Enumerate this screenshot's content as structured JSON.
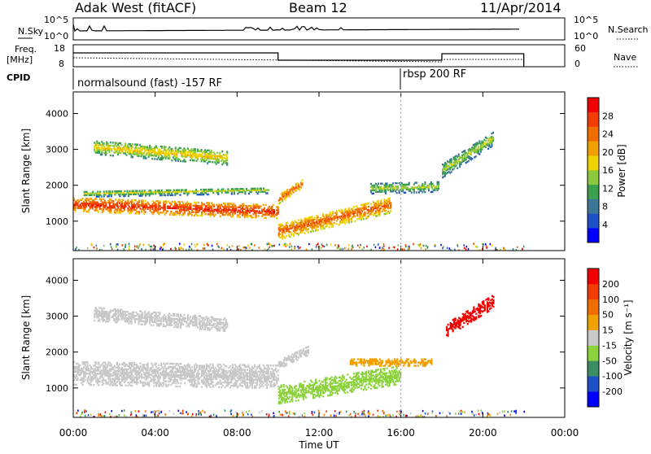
{
  "header": {
    "station": "Adak West (fitACF)",
    "beam": "Beam 12",
    "date": "11/Apr/2014"
  },
  "panels": {
    "nsky_label": "N.Sky",
    "nsky_ticks": [
      "10^5",
      "10^0"
    ],
    "nsearch_label": "N.Search",
    "nsearch_ticks": [
      "10^5",
      "10^0"
    ],
    "freq_label": "Freq.",
    "freq_unit": "[MHz]",
    "freq_ticks": [
      "18",
      "8"
    ],
    "nave_label": "Nave",
    "nave_ticks": [
      "60",
      "0"
    ],
    "cpid_label": "CPID",
    "cpid_segments": [
      "normalsound (fast) -157 RF",
      "rbsp 200 RF"
    ]
  },
  "colorbars": {
    "power": {
      "title": "Power [dB]",
      "labels": [
        "28",
        "24",
        "20",
        "16",
        "12",
        "8",
        "4"
      ],
      "colors": [
        "#0000ff",
        "#1e50c8",
        "#3c7896",
        "#3ca050",
        "#8cc83c",
        "#f0d200",
        "#f0a000",
        "#f06e00",
        "#f03c00",
        "#f00000"
      ]
    },
    "velocity": {
      "title": "Velocity [m s⁻¹]",
      "labels": [
        "200",
        "100",
        "50",
        "15",
        "-15",
        "-50",
        "-100",
        "-200"
      ],
      "colors": [
        "#0000ff",
        "#1e50c8",
        "#3c8c64",
        "#8cd23c",
        "#c8c8c8",
        "#f0a000",
        "#f06e00",
        "#f03c00",
        "#f00000"
      ]
    }
  },
  "chart_data": [
    {
      "type": "heatmap",
      "name": "power",
      "ylabel": "Slant Range [km]",
      "y_ticks": [
        1000,
        2000,
        3000,
        4000
      ],
      "ylim": [
        180,
        4600
      ],
      "xlim_hours": [
        0,
        24
      ],
      "x_ticks": [
        "00:00",
        "04:00",
        "08:00",
        "12:00",
        "16:00",
        "20:00",
        "00:00"
      ],
      "xlabel": "Time UT",
      "echo_bands": [
        {
          "t0": 0.0,
          "t1": 10.0,
          "r_start": 1450,
          "r_end": 1250,
          "width": 380,
          "value": "28"
        },
        {
          "t0": 0.5,
          "t1": 9.5,
          "r_start": 1750,
          "r_end": 1850,
          "width": 180,
          "value": "12"
        },
        {
          "t0": 1.0,
          "t1": 7.5,
          "r_start": 3050,
          "r_end": 2750,
          "width": 400,
          "value": "16"
        },
        {
          "t0": 10.0,
          "t1": 11.2,
          "r_start": 1600,
          "r_end": 2050,
          "width": 260,
          "value": "24"
        },
        {
          "t0": 10.0,
          "t1": 15.5,
          "r_start": 700,
          "r_end": 1450,
          "width": 450,
          "value": "24"
        },
        {
          "t0": 14.5,
          "t1": 17.8,
          "r_start": 1900,
          "r_end": 1950,
          "width": 300,
          "value": "12"
        },
        {
          "t0": 18.0,
          "t1": 20.5,
          "r_start": 2400,
          "r_end": 3300,
          "width": 400,
          "value": "12"
        }
      ]
    },
    {
      "type": "heatmap",
      "name": "velocity",
      "ylabel": "Slant Range [km]",
      "y_ticks": [
        1000,
        2000,
        3000,
        4000
      ],
      "ylim": [
        180,
        4600
      ],
      "xlim_hours": [
        0,
        24
      ],
      "x_ticks": [
        "00:00",
        "04:00",
        "08:00",
        "12:00",
        "16:00",
        "20:00",
        "00:00"
      ],
      "xlabel": "Time UT",
      "echo_bands": [
        {
          "t0": 0.0,
          "t1": 10.0,
          "r_start": 1400,
          "r_end": 1300,
          "width": 650,
          "value": "-15"
        },
        {
          "t0": 1.0,
          "t1": 7.5,
          "r_start": 3050,
          "r_end": 2750,
          "width": 380,
          "value": "-15"
        },
        {
          "t0": 10.0,
          "t1": 16.0,
          "r_start": 800,
          "r_end": 1350,
          "width": 500,
          "value": "-50"
        },
        {
          "t0": 10.0,
          "t1": 11.5,
          "r_start": 1650,
          "r_end": 2050,
          "width": 260,
          "value": "-15"
        },
        {
          "t0": 13.5,
          "t1": 17.5,
          "r_start": 1700,
          "r_end": 1700,
          "width": 200,
          "value": "15"
        },
        {
          "t0": 18.2,
          "t1": 20.5,
          "r_start": 2600,
          "r_end": 3400,
          "width": 380,
          "value": "200"
        }
      ]
    }
  ]
}
